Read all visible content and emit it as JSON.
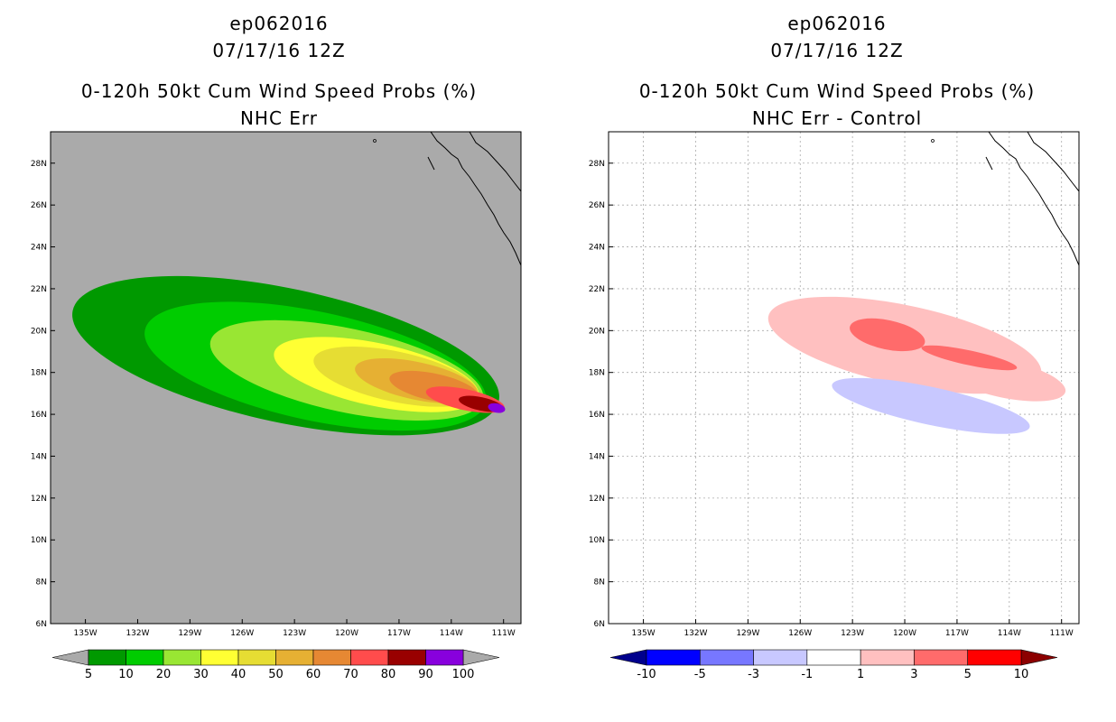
{
  "chart_data": [
    {
      "type": "heatmap",
      "kind": "probability-map",
      "storm_id": "ep062016",
      "datetime": "07/17/16 12Z",
      "title": "0-120h 50kt Cum Wind Speed Probs (%)",
      "subtitle": "NHC Err",
      "xlim": [
        -137,
        -110
      ],
      "ylim": [
        6,
        29.5
      ],
      "x_ticks": [
        "135W",
        "132W",
        "129W",
        "126W",
        "123W",
        "120W",
        "117W",
        "114W",
        "111W"
      ],
      "y_ticks": [
        "6N",
        "8N",
        "10N",
        "12N",
        "14N",
        "16N",
        "18N",
        "20N",
        "22N",
        "24N",
        "26N",
        "28N"
      ],
      "grid": false,
      "background_color": "#aaaaaa",
      "colorbar": {
        "levels": [
          "5",
          "10",
          "20",
          "30",
          "40",
          "50",
          "60",
          "70",
          "80",
          "90",
          "100"
        ],
        "colors": [
          "#009900",
          "#00cc00",
          "#99e633",
          "#ffff33",
          "#e6dd33",
          "#e6b033",
          "#e68833",
          "#ff4c4c",
          "#990000",
          "#8800dd"
        ],
        "under_color": "#aaaaaa",
        "over_color": "#aaaaaa"
      },
      "contours": [
        {
          "level": "5",
          "color": "#009900",
          "center": [
            -123.5,
            18.8
          ],
          "lon_radius": 12.5,
          "lat_radius": 3.2
        },
        {
          "level": "10",
          "color": "#00cc00",
          "center": [
            -121.8,
            18.3
          ],
          "lon_radius": 10.0,
          "lat_radius": 2.6
        },
        {
          "level": "20",
          "color": "#99e633",
          "center": [
            -120.0,
            18.1
          ],
          "lon_radius": 8.0,
          "lat_radius": 2.0
        },
        {
          "level": "30",
          "color": "#ffff33",
          "center": [
            -118.3,
            17.9
          ],
          "lon_radius": 6.0,
          "lat_radius": 1.5
        },
        {
          "level": "40",
          "color": "#e6dd33",
          "center": [
            -117.2,
            17.8
          ],
          "lon_radius": 4.8,
          "lat_radius": 1.2
        },
        {
          "level": "50",
          "color": "#e6b033",
          "center": [
            -116.0,
            17.6
          ],
          "lon_radius": 3.6,
          "lat_radius": 0.9
        },
        {
          "level": "60",
          "color": "#e68833",
          "center": [
            -115.0,
            17.3
          ],
          "lon_radius": 2.6,
          "lat_radius": 0.65
        },
        {
          "level": "70",
          "color": "#ff4c4c",
          "center": [
            -113.2,
            16.7
          ],
          "lon_radius": 2.3,
          "lat_radius": 0.5
        },
        {
          "level": "80",
          "color": "#990000",
          "center": [
            -112.3,
            16.5
          ],
          "lon_radius": 1.3,
          "lat_radius": 0.32
        },
        {
          "level": "90",
          "color": "#8800dd",
          "center": [
            -111.4,
            16.3
          ],
          "lon_radius": 0.5,
          "lat_radius": 0.22
        }
      ]
    },
    {
      "type": "heatmap",
      "kind": "difference-map",
      "storm_id": "ep062016",
      "datetime": "07/17/16 12Z",
      "title": "0-120h 50kt Cum Wind Speed Probs (%)",
      "subtitle": "NHC Err - Control",
      "xlim": [
        -137,
        -110
      ],
      "ylim": [
        6,
        29.5
      ],
      "x_ticks": [
        "135W",
        "132W",
        "129W",
        "126W",
        "123W",
        "120W",
        "117W",
        "114W",
        "111W"
      ],
      "y_ticks": [
        "6N",
        "8N",
        "10N",
        "12N",
        "14N",
        "16N",
        "18N",
        "20N",
        "22N",
        "24N",
        "26N",
        "28N"
      ],
      "grid": true,
      "background_color": "#ffffff",
      "colorbar": {
        "levels": [
          "-10",
          "-5",
          "-3",
          "-1",
          "1",
          "3",
          "5",
          "10"
        ],
        "colors": [
          "#0000ff",
          "#7777ff",
          "#c8c8ff",
          "#ffffff",
          "#ffc0c0",
          "#ff6b6b",
          "#ff0000"
        ],
        "under_color": "#00008c",
        "over_color": "#8c0000"
      },
      "contours": [
        {
          "level": "1 to 3",
          "color": "#ffc0c0",
          "center": [
            -120.0,
            19.3
          ],
          "lon_radius": 8.0,
          "lat_radius": 1.9
        },
        {
          "level": "1 to 3",
          "color": "#ffc0c0",
          "center": [
            -114.3,
            17.7
          ],
          "lon_radius": 3.6,
          "lat_radius": 0.9
        },
        {
          "level": "3 to 5",
          "color": "#ff6b6b",
          "center": [
            -121.0,
            19.8
          ],
          "lon_radius": 2.2,
          "lat_radius": 0.7
        },
        {
          "level": "3 to 5",
          "color": "#ff6b6b",
          "center": [
            -116.3,
            18.7
          ],
          "lon_radius": 2.8,
          "lat_radius": 0.35
        },
        {
          "level": "-1 to -3",
          "color": "#c8c8ff",
          "center": [
            -118.5,
            16.4
          ],
          "lon_radius": 5.8,
          "lat_radius": 0.9
        }
      ]
    }
  ]
}
